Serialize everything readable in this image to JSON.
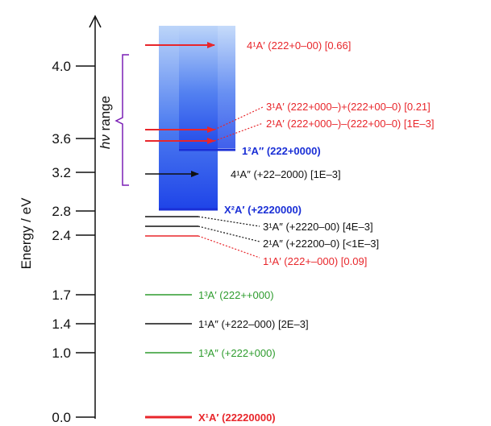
{
  "axis": {
    "label": "Energy / eV",
    "ticks": [
      {
        "value": 0.0,
        "label": "0.0"
      },
      {
        "value": 1.0,
        "label": "1.0"
      },
      {
        "value": 1.4,
        "label": "1.4"
      },
      {
        "value": 1.7,
        "label": "1.7"
      },
      {
        "value": 2.4,
        "label": "2.4"
      },
      {
        "value": 2.8,
        "label": "2.8"
      },
      {
        "value": 3.2,
        "label": "3.2"
      },
      {
        "value": 3.6,
        "label": "3.6"
      },
      {
        "value": 4.0,
        "label": "4.0"
      }
    ]
  },
  "hv_range": {
    "italic": "hν",
    "text": " range"
  },
  "colors": {
    "red": "#e8262b",
    "black": "#111111",
    "green": "#2e9c2e",
    "blue": "#1a2fd6",
    "ion_dark": "#1f44e8",
    "ion_light": "#bcd5f9",
    "purple": "#7a1fb5"
  },
  "cation_states": [
    {
      "term": "X²A′",
      "config": "(+2220000)",
      "energy": 2.8,
      "color": "blue"
    },
    {
      "term": "1²A″",
      "config": "(222+0000)",
      "energy": 3.45,
      "color": "blue"
    }
  ],
  "neutral_states": [
    {
      "term": "X¹A′",
      "config": "(22220000)",
      "energy": 0.0,
      "color": "red",
      "bold": true
    },
    {
      "term": "1³A″",
      "config": "(+222+000)",
      "energy": 1.0,
      "color": "green"
    },
    {
      "term": "1¹A″",
      "config": "(+222–000)",
      "strength": "[2E–3]",
      "energy": 1.4,
      "color": "black"
    },
    {
      "term": "1³A′",
      "config": "(222++000)",
      "energy": 1.7,
      "color": "green"
    },
    {
      "term": "1¹A′",
      "config": "(222+–000)",
      "strength": "[0.09]",
      "energy": 2.4,
      "color": "red"
    },
    {
      "term": "2¹A″",
      "config": "(+22200–0)",
      "strength": "[<1E–3]",
      "energy": 2.5,
      "color": "black"
    },
    {
      "term": "3¹A″",
      "config": "(+2220–00)",
      "strength": "[4E–3]",
      "energy": 2.6,
      "color": "black"
    },
    {
      "term": "4¹A″",
      "config": "(+22–2000)",
      "strength": "[1E–3]",
      "energy": 3.2,
      "color": "black"
    },
    {
      "term": "2¹A′",
      "config": "(222+000–)–(222+00–0)",
      "strength": "[1E–3]",
      "energy": 3.5,
      "color": "red"
    },
    {
      "term": "3¹A′",
      "config": "(222+000–)+(222+00–0)",
      "strength": "[0.21]",
      "energy": 3.6,
      "color": "red"
    },
    {
      "term": "4¹A′",
      "config": "(222+0–00)",
      "strength": "[0.66]",
      "energy": 4.15,
      "color": "red"
    }
  ]
}
